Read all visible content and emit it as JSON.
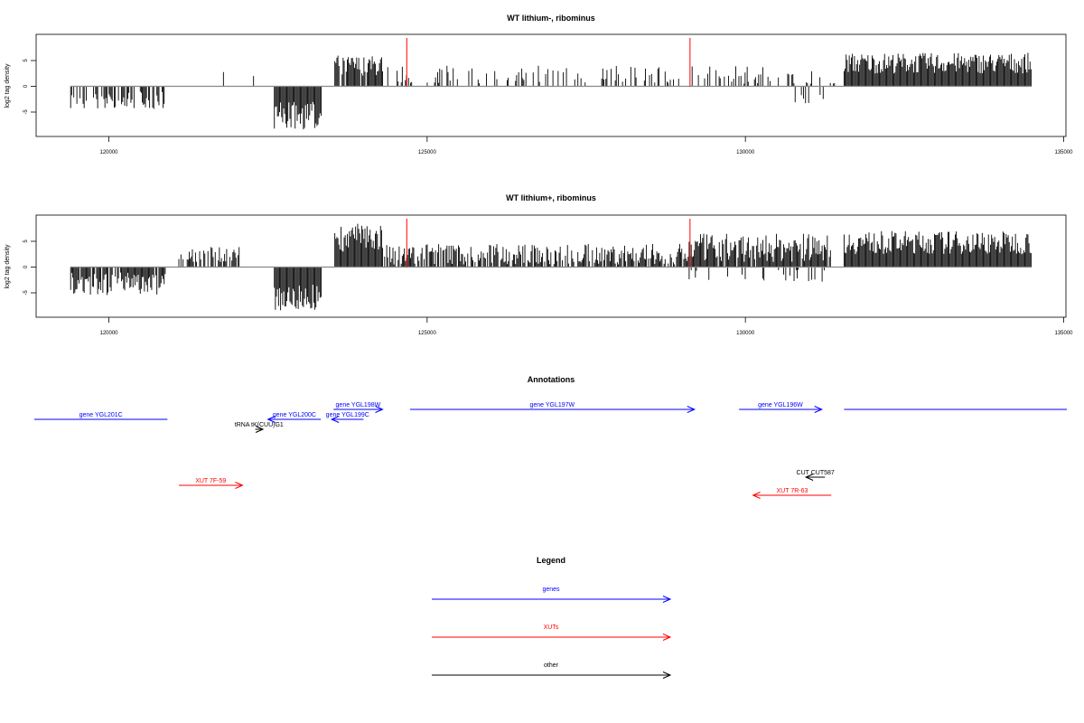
{
  "chart_data": [
    {
      "type": "bar",
      "title": "WT lithium-, ribominus",
      "ylabel": "log2 tag density",
      "xlim": [
        118800,
        135050
      ],
      "ylim": [
        -10,
        10
      ],
      "x_ticks": [
        120000,
        125000,
        130000,
        135000
      ],
      "x_tick_labels": [
        "120000",
        "125000",
        "130000",
        "135000"
      ],
      "y_ticks": [
        -5,
        0,
        5
      ],
      "y_tick_labels": [
        "-5",
        "0",
        "5"
      ],
      "bar_color": "#000000",
      "baseline_color": "#888888",
      "markers": {
        "x": [
          124680,
          129130
        ],
        "color": "#ff0000"
      },
      "segments": [
        {
          "x": [
            119400,
            120900
          ],
          "sign": "neg",
          "min": 1.0,
          "max": 4.5,
          "density": 0.55
        },
        {
          "x": [
            121800,
            122300
          ],
          "sign": "pos",
          "min": 1.0,
          "max": 3.0,
          "density": 0.15
        },
        {
          "x": [
            122600,
            123350
          ],
          "sign": "neg",
          "min": 3.0,
          "max": 8.5,
          "density": 1.0
        },
        {
          "x": [
            123550,
            124300
          ],
          "sign": "pos",
          "min": 2.0,
          "max": 6.0,
          "density": 0.85
        },
        {
          "x": [
            124300,
            131400
          ],
          "sign": "pos",
          "min": 0.5,
          "max": 4.0,
          "density": 0.3
        },
        {
          "x": [
            130700,
            131300
          ],
          "sign": "neg",
          "min": 1.0,
          "max": 3.5,
          "density": 0.2
        },
        {
          "x": [
            131550,
            134500
          ],
          "sign": "pos",
          "min": 2.5,
          "max": 6.5,
          "density": 1.0
        }
      ]
    },
    {
      "type": "bar",
      "title": "WT lithium+, ribominus",
      "ylabel": "log2 tag density",
      "xlim": [
        118800,
        135050
      ],
      "ylim": [
        -10,
        10
      ],
      "x_ticks": [
        120000,
        125000,
        130000,
        135000
      ],
      "x_tick_labels": [
        "120000",
        "125000",
        "130000",
        "135000"
      ],
      "y_ticks": [
        -5,
        0,
        5
      ],
      "y_tick_labels": [
        "-5",
        "0",
        "5"
      ],
      "bar_color": "#000000",
      "baseline_color": "#888888",
      "markers": {
        "x": [
          124680,
          129130
        ],
        "color": "#ff0000"
      },
      "segments": [
        {
          "x": [
            119400,
            120900
          ],
          "sign": "neg",
          "min": 1.0,
          "max": 5.5,
          "density": 0.9
        },
        {
          "x": [
            121100,
            122050
          ],
          "sign": "pos",
          "min": 1.0,
          "max": 4.0,
          "density": 0.7
        },
        {
          "x": [
            122600,
            123350
          ],
          "sign": "neg",
          "min": 3.0,
          "max": 8.5,
          "density": 1.0
        },
        {
          "x": [
            123550,
            124300
          ],
          "sign": "pos",
          "min": 3.0,
          "max": 8.5,
          "density": 1.0
        },
        {
          "x": [
            124300,
            129100
          ],
          "sign": "pos",
          "min": 0.5,
          "max": 4.5,
          "density": 0.75
        },
        {
          "x": [
            129100,
            131350
          ],
          "sign": "pos",
          "min": 1.0,
          "max": 6.5,
          "density": 0.95
        },
        {
          "x": [
            129100,
            131350
          ],
          "sign": "neg",
          "min": 0.5,
          "max": 3.0,
          "density": 0.15
        },
        {
          "x": [
            131550,
            134500
          ],
          "sign": "pos",
          "min": 2.5,
          "max": 7.0,
          "density": 1.0
        }
      ]
    }
  ],
  "annotations": {
    "title": "Annotations",
    "features": [
      {
        "label": "gene YGL201C",
        "color": "#0000ff",
        "start": 118800,
        "end": 120920,
        "dir": "none",
        "track": 2
      },
      {
        "label": "tRNA tK(CUU)G1",
        "color": "#000000",
        "start": 122300,
        "end": 122420,
        "dir": "right",
        "track": 1
      },
      {
        "label": "gene YGL200C",
        "color": "#0000ff",
        "start": 122500,
        "end": 123330,
        "dir": "left",
        "track": 2
      },
      {
        "label": "gene YGL199C",
        "color": "#0000ff",
        "start": 123500,
        "end": 124000,
        "dir": "left",
        "track": 2
      },
      {
        "label": "gene YGL198W",
        "color": "#0000ff",
        "start": 123530,
        "end": 124300,
        "dir": "right",
        "track": 3
      },
      {
        "label": "gene YGL197W",
        "color": "#0000ff",
        "start": 124730,
        "end": 129200,
        "dir": "right",
        "track": 3
      },
      {
        "label": "gene YGL196W",
        "color": "#0000ff",
        "start": 129900,
        "end": 131200,
        "dir": "right",
        "track": 3
      },
      {
        "label": "",
        "color": "#0000ff",
        "start": 131550,
        "end": 135050,
        "dir": "none",
        "track": 3
      },
      {
        "label": "XUT 7F-59",
        "color": "#ff0000",
        "start": 121100,
        "end": 122100,
        "dir": "right",
        "track": 4
      },
      {
        "label": "CUT CUT587",
        "color": "#000000",
        "start": 130950,
        "end": 131250,
        "dir": "left",
        "track": 5
      },
      {
        "label": "XUT 7R-63",
        "color": "#ff0000",
        "start": 130120,
        "end": 131350,
        "dir": "left",
        "track": 6
      }
    ]
  },
  "legend": {
    "title": "Legend",
    "items": [
      {
        "label": "genes",
        "color": "#0000ff"
      },
      {
        "label": "XUTs",
        "color": "#ff0000"
      },
      {
        "label": "other",
        "color": "#000000"
      }
    ]
  }
}
